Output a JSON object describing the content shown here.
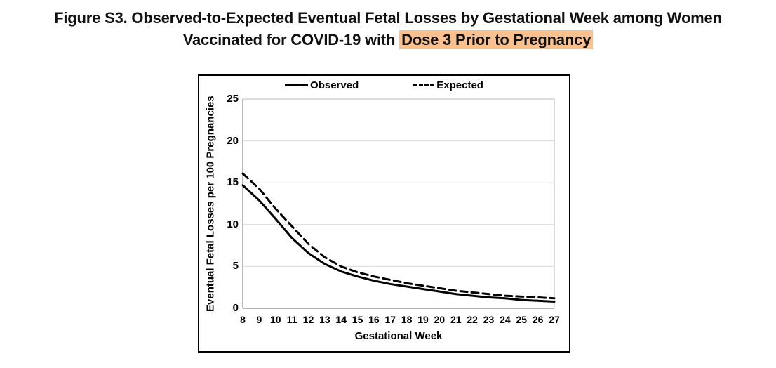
{
  "figure": {
    "title_line1": "Figure S3. Observed-to-Expected Eventual Fetal Losses by Gestational Week among Women",
    "title_line2_prefix": "Vaccinated for COVID-19 with ",
    "title_line2_highlight": "Dose 3 Prior to Pregnancy",
    "highlight_color": "#FAC090"
  },
  "chart_data": {
    "type": "line",
    "title": "",
    "xlabel": "Gestational Week",
    "ylabel": "Eventual Fetal Losses per 100 Pregnancies",
    "x": [
      8,
      9,
      10,
      11,
      12,
      13,
      14,
      15,
      16,
      17,
      18,
      19,
      20,
      21,
      22,
      23,
      24,
      25,
      26,
      27
    ],
    "series": [
      {
        "name": "Observed",
        "style": "solid",
        "color": "#000000",
        "values": [
          14.7,
          12.9,
          10.7,
          8.4,
          6.6,
          5.3,
          4.4,
          3.8,
          3.3,
          2.9,
          2.6,
          2.3,
          2.0,
          1.7,
          1.5,
          1.3,
          1.2,
          1.0,
          0.9,
          0.8
        ]
      },
      {
        "name": "Expected",
        "style": "dashed",
        "color": "#000000",
        "values": [
          16.1,
          14.3,
          11.9,
          9.8,
          7.7,
          6.1,
          5.0,
          4.3,
          3.8,
          3.4,
          3.0,
          2.7,
          2.4,
          2.1,
          1.9,
          1.7,
          1.5,
          1.4,
          1.3,
          1.2
        ]
      }
    ],
    "ylim": [
      0,
      25
    ],
    "yticks": [
      0,
      5,
      10,
      15,
      20,
      25
    ],
    "grid": true,
    "legend_position": "top",
    "gridline_color": "#D9D9D9",
    "frame_color": "#C6C6C6",
    "axis_color": "#9B9B9B",
    "line_width": 3
  }
}
